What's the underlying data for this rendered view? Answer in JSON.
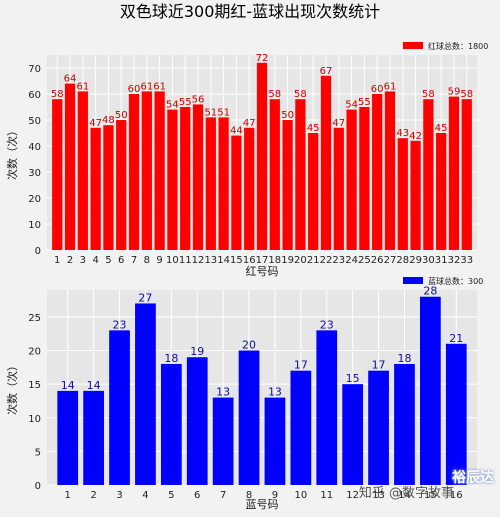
{
  "page": {
    "title": "双色球近300期红-蓝球出现次数统计"
  },
  "watermark": {
    "line1": "知乎 @数字故事",
    "line2": "裕辰达"
  },
  "chart_data": [
    {
      "type": "bar",
      "xlabel": "红号码",
      "ylabel": "次数（次）",
      "ylim": [
        0,
        75
      ],
      "yticks": [
        0,
        10,
        20,
        30,
        40,
        50,
        60,
        70
      ],
      "grid": true,
      "legend_position": "top-right",
      "color": "#ff0000",
      "categories": [
        "1",
        "2",
        "3",
        "4",
        "5",
        "6",
        "7",
        "8",
        "9",
        "10",
        "11",
        "12",
        "13",
        "14",
        "15",
        "16",
        "17",
        "18",
        "19",
        "20",
        "21",
        "22",
        "23",
        "24",
        "25",
        "26",
        "27",
        "28",
        "29",
        "30",
        "31",
        "32",
        "33"
      ],
      "series": [
        {
          "name": "红球总数：1800",
          "values": [
            58,
            64,
            61,
            47,
            48,
            50,
            60,
            61,
            61,
            54,
            55,
            56,
            51,
            51,
            44,
            47,
            72,
            58,
            50,
            58,
            45,
            67,
            47,
            54,
            55,
            60,
            61,
            43,
            42,
            58,
            45,
            59,
            58
          ]
        }
      ]
    },
    {
      "type": "bar",
      "xlabel": "蓝号码",
      "ylabel": "次数（次）",
      "ylim": [
        0,
        29
      ],
      "yticks": [
        0,
        5,
        10,
        15,
        20,
        25
      ],
      "grid": true,
      "legend_position": "top-right",
      "color": "#0000ff",
      "categories": [
        "1",
        "2",
        "3",
        "4",
        "5",
        "6",
        "7",
        "8",
        "9",
        "10",
        "11",
        "12",
        "13",
        "14",
        "15",
        "16"
      ],
      "series": [
        {
          "name": "蓝球总数：300",
          "values": [
            14,
            14,
            23,
            27,
            18,
            19,
            13,
            20,
            13,
            17,
            23,
            15,
            17,
            18,
            28,
            21
          ]
        }
      ]
    }
  ]
}
